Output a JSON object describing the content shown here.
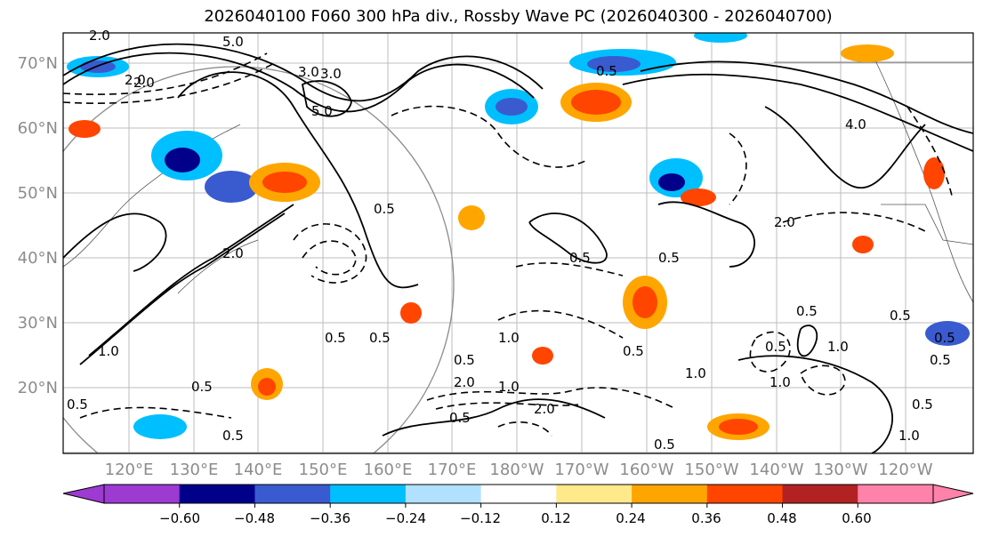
{
  "title": "2026040100 F060 300 hPa div., Rossby Wave PC (2026040300 - 2026040700)",
  "lat_labels": [
    "70°N",
    "60°N",
    "50°N",
    "40°N",
    "30°N",
    "20°N"
  ],
  "lon_labels": [
    "120°E",
    "130°E",
    "140°E",
    "150°E",
    "160°E",
    "170°E",
    "180°W",
    "170°W",
    "160°W",
    "150°W",
    "140°W",
    "130°W",
    "120°W"
  ],
  "colorbar": {
    "colors": [
      "#9c3ad2",
      "#00008b",
      "#3a5bcf",
      "#00bfff",
      "#b0e2ff",
      "#ffffff",
      "#ffe98a",
      "#ffa500",
      "#ff4500",
      "#b22222",
      "#ff82ab"
    ],
    "ticks": [
      "−0.60",
      "−0.48",
      "−0.36",
      "−0.24",
      "−0.12",
      "0.12",
      "0.24",
      "0.36",
      "0.48",
      "0.60"
    ]
  },
  "contour_labels": [
    "2.0",
    "5.0",
    "3.0",
    "2.0",
    "3.0",
    "4.0",
    "2.0",
    "1.0",
    "5.0",
    "0.5",
    "2.0",
    "0.5",
    "1.0",
    "2.0",
    "0.5",
    "0.5",
    "0.5",
    "0.5",
    "0.5",
    "0.5",
    "0.5",
    "1.0",
    "2.0",
    "0.5",
    "0.5",
    "0.5",
    "0.5",
    "1.0",
    "1.0",
    "0.5",
    "1.0",
    "0.5",
    "0.5",
    "2.0",
    "0.5",
    "0.5",
    "1.0",
    "0.5"
  ]
}
